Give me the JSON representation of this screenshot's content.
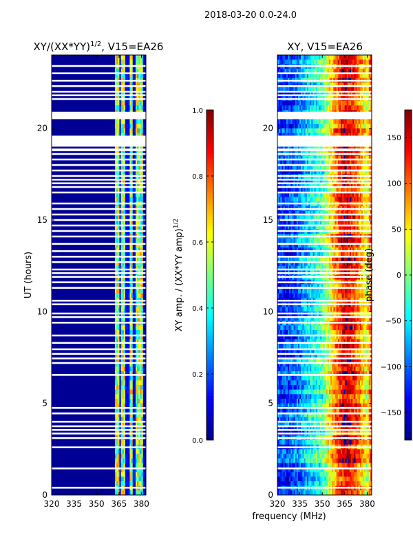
{
  "figure_title": "2018-03-20 0.0-24.0",
  "shared_xlabel": "frequency (MHz)",
  "chart_data": [
    {
      "type": "heatmap",
      "title_main": "XY/(XX*YY)",
      "title_sup": "1/2",
      "title_suffix": ", V15=EA26",
      "xlabel": "",
      "ylabel": "UT (hours)",
      "x_range": [
        320,
        383
      ],
      "y_range": [
        0,
        24
      ],
      "x_ticks": [
        320,
        335,
        350,
        365,
        380
      ],
      "y_ticks": [
        0,
        5,
        10,
        15,
        20
      ],
      "colorbar": {
        "label_main": "XY amp. / (XX*YY amp)",
        "label_sup": "1/2",
        "range": [
          0.0,
          1.0
        ],
        "ticks": [
          "0.0",
          "0.2",
          "0.4",
          "0.6",
          "0.8",
          "1.0"
        ],
        "tick_values": [
          0.0,
          0.2,
          0.4,
          0.6,
          0.8,
          1.0
        ],
        "colormap": "jet"
      },
      "background_value": 0.02,
      "bright_band_mhz": [
        362,
        382
      ],
      "bright_columns_mhz": [
        364,
        368,
        373,
        377,
        379.5
      ],
      "bright_value_range": [
        0.3,
        0.75
      ]
    },
    {
      "type": "heatmap",
      "title_main": "XY, V15=EA26",
      "ylabel": "phase (deg)",
      "x_range": [
        320,
        383
      ],
      "y_range": [
        0,
        24
      ],
      "x_ticks": [
        320,
        335,
        350,
        365,
        380
      ],
      "y_ticks": [
        0,
        5,
        10,
        15,
        20
      ],
      "colorbar": {
        "label_main": "phase (deg)",
        "range": [
          -180,
          180
        ],
        "ticks": [
          "150",
          "100",
          "50",
          "0",
          "−50",
          "−100",
          "−150"
        ],
        "tick_values": [
          150,
          100,
          50,
          0,
          -50,
          -100,
          -150
        ],
        "colormap": "jet"
      },
      "phase_profile_mhz": [
        320,
        330,
        340,
        350,
        355,
        360,
        365,
        372,
        380,
        383
      ],
      "phase_profile_deg": [
        -120,
        -110,
        -60,
        -20,
        40,
        100,
        150,
        120,
        30,
        130
      ]
    }
  ],
  "blank_ut_hours": [
    0.4,
    1.45,
    2.6,
    3.1,
    3.35,
    3.55,
    3.75,
    4.0,
    4.45,
    4.75,
    6.55,
    7.2,
    7.45,
    7.7,
    7.95,
    8.3,
    8.7,
    9.4,
    9.7,
    9.9,
    10.4,
    10.6,
    11.3,
    11.6,
    11.9,
    12.1,
    12.3,
    12.7,
    13.0,
    13.3,
    13.7,
    14.1,
    14.4,
    14.7,
    15.0,
    15.3,
    15.6,
    15.9,
    16.5,
    16.8,
    17.0,
    17.2,
    17.4,
    17.7,
    18.0,
    18.3,
    18.6,
    21.6,
    21.8,
    22.0,
    22.3,
    22.6,
    23.0,
    23.4
  ],
  "blank_ut_bands": [
    [
      19.0,
      19.6
    ],
    [
      20.5,
      20.9
    ],
    [
      18.75,
      18.9
    ]
  ]
}
